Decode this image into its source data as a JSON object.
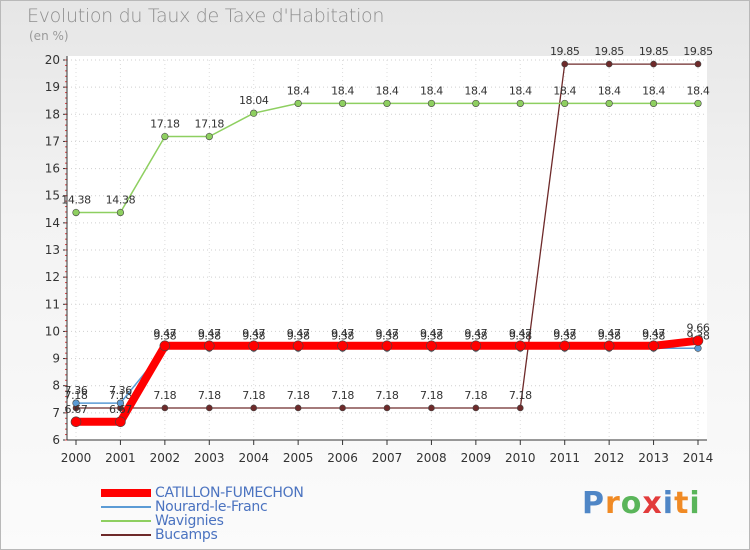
{
  "chart_data": {
    "type": "line",
    "title": "Evolution du Taux de Taxe d'Habitation",
    "ylabel": "(en %)",
    "xlabel": "",
    "x": [
      "2000",
      "2001",
      "2002",
      "2003",
      "2004",
      "2005",
      "2006",
      "2007",
      "2008",
      "2009",
      "2010",
      "2011",
      "2012",
      "2013",
      "2014"
    ],
    "yticks": [
      "6",
      "7",
      "8",
      "9",
      "10",
      "11",
      "12",
      "13",
      "14",
      "15",
      "16",
      "17",
      "18",
      "19",
      "20"
    ],
    "ylim": [
      6,
      20
    ],
    "series": [
      {
        "name": "Bucamps",
        "color": "#6e2a2a",
        "values": [
          7.18,
          7.18,
          7.18,
          7.18,
          7.18,
          7.18,
          7.18,
          7.18,
          7.18,
          7.18,
          7.18,
          19.85,
          19.85,
          19.85,
          19.85
        ],
        "labels": [
          "7.18",
          "7.18",
          "7.18",
          "7.18",
          "7.18",
          "7.18",
          "7.18",
          "7.18",
          "7.18",
          "7.18",
          "7.18",
          "19.85",
          "19.85",
          "19.85",
          "19.85"
        ]
      },
      {
        "name": "Wavignies",
        "color": "#8ecf60",
        "values": [
          14.38,
          14.38,
          17.18,
          17.18,
          18.04,
          18.4,
          18.4,
          18.4,
          18.4,
          18.4,
          18.4,
          18.4,
          18.4,
          18.4,
          18.4
        ],
        "labels": [
          "14.38",
          "14.38",
          "17.18",
          "17.18",
          "18.04",
          "18.4",
          "18.4",
          "18.4",
          "18.4",
          "18.4",
          "18.4",
          "18.4",
          "18.4",
          "18.4",
          "18.4"
        ]
      },
      {
        "name": "Nourard-le-Franc",
        "color": "#5b9bd5",
        "values": [
          7.36,
          7.36,
          9.38,
          9.38,
          9.38,
          9.38,
          9.38,
          9.38,
          9.38,
          9.38,
          9.38,
          9.38,
          9.38,
          9.38,
          9.38
        ],
        "labels": [
          "7.36",
          "7.36",
          "9.38",
          "9.38",
          "9.38",
          "9.38",
          "9.38",
          "9.38",
          "9.38",
          "9.38",
          "9.38",
          "9.38",
          "9.38",
          "9.38",
          "9.38"
        ]
      },
      {
        "name": "CATILLON-FUMECHON",
        "color": "#ff0000",
        "values": [
          6.67,
          6.67,
          9.47,
          9.47,
          9.47,
          9.47,
          9.47,
          9.47,
          9.47,
          9.47,
          9.47,
          9.47,
          9.47,
          9.47,
          9.66
        ],
        "labels": [
          "6.67",
          "6.67",
          "9.47",
          "9.47",
          "9.47",
          "9.47",
          "9.47",
          "9.47",
          "9.47",
          "9.47",
          "9.47",
          "9.47",
          "9.47",
          "9.47",
          "9.66"
        ]
      }
    ],
    "legend": "bottom-left"
  },
  "legend_items": [
    {
      "name": "CATILLON-FUMECHON",
      "color": "#ff0000"
    },
    {
      "name": "Nourard-le-Franc",
      "color": "#5b9bd5"
    },
    {
      "name": "Wavignies",
      "color": "#8ecf60"
    },
    {
      "name": "Bucamps",
      "color": "#6e2a2a"
    }
  ],
  "logo": {
    "text": "Proxiti",
    "letter_colors": [
      "#4f86c6",
      "#f08a24",
      "#5ab55a",
      "#e23b3b",
      "#4f86c6",
      "#f08a24",
      "#5ab55a"
    ]
  }
}
